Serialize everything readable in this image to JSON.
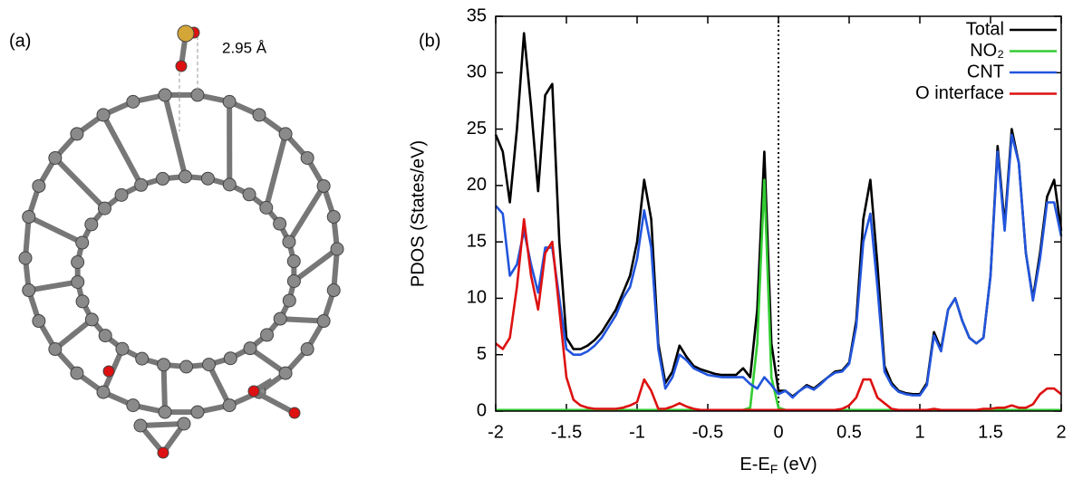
{
  "panel_a": {
    "label": "(a)",
    "annotation": "2.95 Å"
  },
  "chart_data": {
    "type": "line",
    "panel_label": "(b)",
    "ylabel": "PDOS (States/eV)",
    "xlabel": {
      "main": "E-E",
      "sub": "F",
      "tail": " (eV)"
    },
    "x": [
      -2,
      -1.95,
      -1.9,
      -1.85,
      -1.8,
      -1.75,
      -1.7,
      -1.65,
      -1.6,
      -1.55,
      -1.5,
      -1.45,
      -1.4,
      -1.35,
      -1.3,
      -1.25,
      -1.2,
      -1.15,
      -1.1,
      -1.05,
      -1,
      -0.95,
      -0.9,
      -0.85,
      -0.8,
      -0.75,
      -0.7,
      -0.65,
      -0.6,
      -0.55,
      -0.5,
      -0.45,
      -0.4,
      -0.35,
      -0.3,
      -0.25,
      -0.2,
      -0.15,
      -0.1,
      -0.05,
      0,
      0.05,
      0.1,
      0.15,
      0.2,
      0.25,
      0.3,
      0.35,
      0.4,
      0.45,
      0.5,
      0.55,
      0.6,
      0.65,
      0.7,
      0.75,
      0.8,
      0.85,
      0.9,
      0.95,
      1,
      1.05,
      1.1,
      1.15,
      1.2,
      1.25,
      1.3,
      1.35,
      1.4,
      1.45,
      1.5,
      1.55,
      1.6,
      1.65,
      1.7,
      1.75,
      1.8,
      1.85,
      1.9,
      1.95,
      2
    ],
    "series": [
      {
        "name": "Total",
        "color": "#000000",
        "values": [
          24.5,
          23,
          18.5,
          25,
          33.5,
          27,
          19.5,
          28,
          29,
          15,
          6.5,
          5.5,
          5.5,
          5.8,
          6.3,
          7,
          8,
          9,
          10.5,
          12,
          15,
          20.5,
          17,
          6,
          2.5,
          3.5,
          5.8,
          4.8,
          4,
          3.7,
          3.5,
          3.3,
          3.2,
          3.2,
          3.2,
          3.8,
          3,
          9,
          23,
          6,
          1.8,
          1.8,
          1.3,
          1.8,
          2.3,
          2,
          2.5,
          3,
          3.5,
          3.6,
          4.3,
          8,
          17,
          20.5,
          13,
          4,
          2.5,
          1.8,
          1.6,
          1.5,
          1.5,
          2.5,
          7,
          5.5,
          9,
          10,
          8,
          6.5,
          6,
          6.5,
          12,
          23.5,
          16.5,
          25,
          22,
          14,
          10,
          14,
          19,
          20.5,
          16
        ]
      },
      {
        "name": "NO₂",
        "color": "#33cc33",
        "values": [
          0.1,
          0.1,
          0.1,
          0.1,
          0.1,
          0.1,
          0.1,
          0.1,
          0.1,
          0.1,
          0.1,
          0.1,
          0.1,
          0.1,
          0.1,
          0.1,
          0.1,
          0.1,
          0.1,
          0.1,
          0.1,
          0.1,
          0.1,
          0.1,
          0.1,
          0.1,
          0.1,
          0.1,
          0.1,
          0.1,
          0.1,
          0.1,
          0.1,
          0.1,
          0.1,
          0.1,
          0.3,
          6,
          20.5,
          3,
          0.3,
          0.1,
          0.1,
          0.1,
          0.1,
          0.1,
          0.1,
          0.1,
          0.1,
          0.1,
          0.1,
          0.1,
          0.1,
          0.1,
          0.1,
          0.1,
          0.1,
          0.1,
          0.1,
          0.1,
          0.1,
          0.1,
          0.1,
          0.1,
          0.1,
          0.1,
          0.1,
          0.1,
          0.1,
          0.1,
          0.1,
          0.1,
          0.1,
          0.1,
          0.1,
          0.1,
          0.1,
          0.1,
          0.1,
          0.1,
          0.1
        ]
      },
      {
        "name": "CNT",
        "color": "#2255dd",
        "values": [
          18.2,
          17.5,
          12,
          13,
          16,
          13,
          10.5,
          14.5,
          14.5,
          10,
          5.5,
          5,
          5,
          5.3,
          5.8,
          6.5,
          7.5,
          8.5,
          10,
          11,
          13.5,
          17.8,
          14.5,
          5.5,
          2,
          3,
          5,
          4.5,
          3.8,
          3.5,
          3.2,
          3.1,
          3,
          3,
          3,
          3,
          2.4,
          2,
          3,
          2.3,
          1.5,
          1.8,
          1.2,
          1.8,
          2.2,
          1.9,
          2.4,
          3,
          3.4,
          3.5,
          4.2,
          7.5,
          15,
          17.5,
          11,
          3.5,
          2.3,
          1.7,
          1.5,
          1.4,
          1.4,
          2.3,
          6.7,
          5.3,
          9,
          10,
          8,
          6.5,
          6,
          6.5,
          12,
          23,
          16,
          24.5,
          22,
          14,
          9.8,
          13.5,
          18.5,
          18.5,
          15.5
        ]
      },
      {
        "name": "O interface",
        "color": "#dd1111",
        "values": [
          6,
          5.5,
          6.5,
          11,
          17,
          12,
          9,
          14,
          15,
          9,
          3,
          1,
          0.5,
          0.3,
          0.2,
          0.2,
          0.2,
          0.2,
          0.3,
          0.5,
          0.8,
          2.8,
          1.8,
          0.2,
          0.2,
          0.4,
          0.7,
          0.4,
          0.2,
          0.1,
          0.1,
          0.1,
          0.1,
          0.1,
          0.1,
          0.1,
          0.1,
          0.1,
          0.1,
          0.1,
          0.1,
          0.1,
          0.1,
          0.1,
          0.1,
          0.1,
          0.1,
          0.1,
          0.1,
          0.2,
          0.5,
          1.2,
          2.8,
          2.8,
          1.2,
          0.7,
          0.2,
          0.1,
          0.1,
          0.1,
          0.1,
          0.1,
          0.2,
          0.1,
          0.1,
          0.1,
          0.1,
          0.1,
          0.1,
          0.2,
          0.2,
          0.3,
          0.3,
          0.5,
          0.3,
          0.3,
          0.6,
          1.5,
          2,
          2,
          1.5
        ]
      }
    ],
    "xlim": [
      -2,
      2
    ],
    "ylim": [
      0,
      35
    ],
    "xticks": [
      -2,
      -1.5,
      -1,
      -0.5,
      0,
      0.5,
      1,
      1.5,
      2
    ],
    "yticks": [
      0,
      5,
      10,
      15,
      20,
      25,
      30,
      35
    ],
    "vline": 0,
    "legend": "top-right",
    "grid": false
  }
}
